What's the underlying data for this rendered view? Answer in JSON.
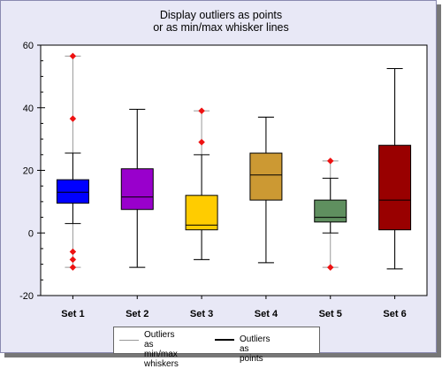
{
  "chart_data": {
    "type": "box",
    "title_lines": [
      "Display outliers as points",
      "or as min/max whisker lines"
    ],
    "xlabel": "",
    "ylabel": "",
    "ylim": [
      -20,
      60
    ],
    "yticks": [
      -20,
      0,
      20,
      40,
      60
    ],
    "grid": false,
    "legend_placement": "bottom-center",
    "categories": [
      "Set 1",
      "Set 2",
      "Set 3",
      "Set 4",
      "Set 5",
      "Set 6"
    ],
    "boxes": [
      {
        "name": "Set 1",
        "color": "#0000ff",
        "q1": 9.5,
        "median": 13,
        "q3": 17,
        "whisker_low": 3,
        "whisker_high": 25.5,
        "min": -11,
        "max": 56.5,
        "outliers": [
          56.5,
          36.5,
          -6,
          -8.5,
          -11
        ]
      },
      {
        "name": "Set 2",
        "color": "#9900cc",
        "q1": 7.5,
        "median": 11.5,
        "q3": 20.5,
        "whisker_low": -11,
        "whisker_high": 39.5,
        "min": -11,
        "max": 39.5,
        "outliers": []
      },
      {
        "name": "Set 3",
        "color": "#ffcc00",
        "q1": 1,
        "median": 2.5,
        "q3": 12,
        "whisker_low": -8.5,
        "whisker_high": 25,
        "min": -8.5,
        "max": 39,
        "outliers": [
          39,
          29
        ]
      },
      {
        "name": "Set 4",
        "color": "#cc9933",
        "q1": 10.5,
        "median": 18.5,
        "q3": 25.5,
        "whisker_low": -9.5,
        "whisker_high": 37,
        "min": -9.5,
        "max": 37,
        "outliers": []
      },
      {
        "name": "Set 5",
        "color": "#5f8f5f",
        "q1": 3.5,
        "median": 5,
        "q3": 10.5,
        "whisker_low": 0,
        "whisker_high": 17.5,
        "min": -11,
        "max": 23,
        "outliers": [
          23,
          -11
        ]
      },
      {
        "name": "Set 6",
        "color": "#990000",
        "q1": 1,
        "median": 10.5,
        "q3": 28,
        "whisker_low": -11.5,
        "whisker_high": 52.5,
        "min": -11.5,
        "max": 52.5,
        "outliers": []
      }
    ],
    "outlier_color": "#ee1111",
    "minmax_line_color": "#999999",
    "legend": [
      {
        "label": "Outliers as\nmin/max whiskers",
        "line_color": "#999999"
      },
      {
        "label": "Outliers as points",
        "line_color": "#000000"
      }
    ]
  }
}
